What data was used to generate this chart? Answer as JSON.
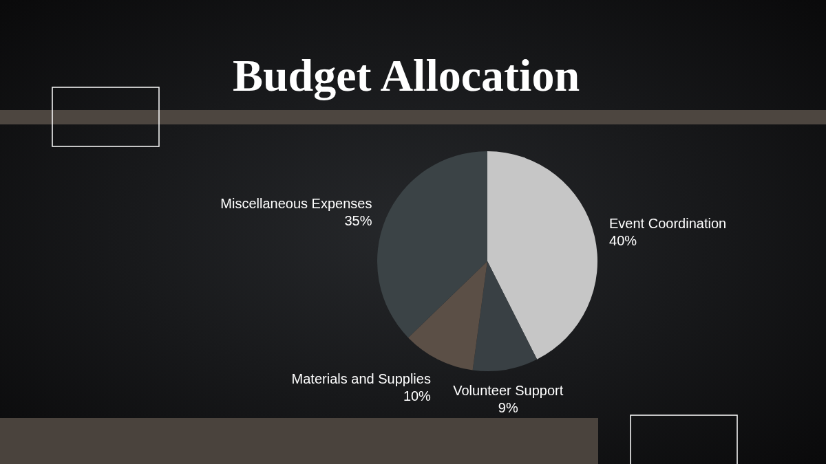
{
  "chart_data": {
    "type": "pie",
    "title": "Budget Allocation",
    "categories": [
      "Event Coordination",
      "Volunteer Support",
      "Materials and Supplies",
      "Miscellaneous Expenses"
    ],
    "values": [
      40,
      9,
      10,
      35
    ],
    "value_labels": [
      "40%",
      "9%",
      "10%",
      "35%"
    ],
    "colors": [
      "#c6c6c6",
      "#394044",
      "#5b4f46",
      "#3b4346"
    ]
  }
}
